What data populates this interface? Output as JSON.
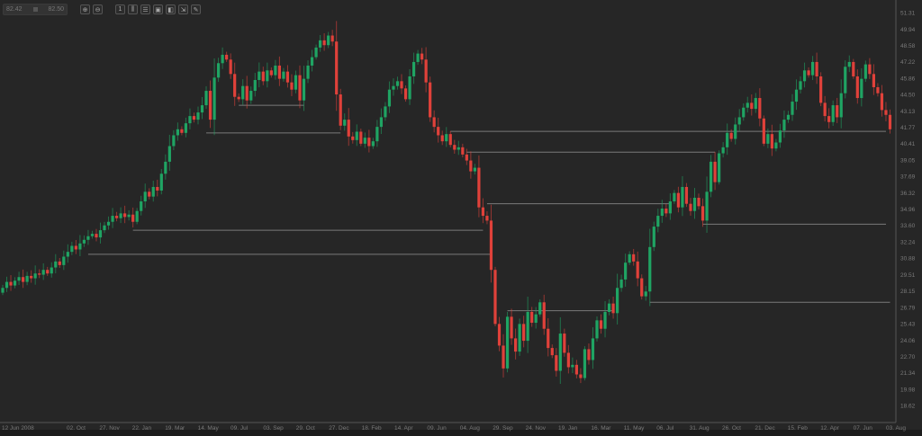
{
  "toolbar": {
    "range_from": "82.42",
    "range_to": "82.50",
    "buttons": [
      {
        "icon": "zoom-in-icon",
        "glyph": "⊕"
      },
      {
        "icon": "zoom-out-icon",
        "glyph": "⊖"
      },
      {
        "icon": "timeframe-icon",
        "glyph": "1"
      },
      {
        "icon": "candle-type-icon",
        "glyph": "⫼"
      },
      {
        "icon": "indicators-icon",
        "glyph": "☰"
      },
      {
        "icon": "fit-screen-icon",
        "glyph": "▣"
      },
      {
        "icon": "layers-icon",
        "glyph": "◧"
      },
      {
        "icon": "export-icon",
        "glyph": "⇲"
      },
      {
        "icon": "draw-icon",
        "glyph": "✎"
      }
    ]
  },
  "colors": {
    "background": "#262626",
    "up": "#1fa463",
    "down": "#e0413a",
    "level_line": "#7a7a7a"
  },
  "chart_data": {
    "type": "candlestick",
    "interval": "weekly",
    "ylim": [
      18.62,
      51.31
    ],
    "y_ticks": [
      "51.31",
      "49.94",
      "48.58",
      "47.22",
      "45.86",
      "44.50",
      "43.13",
      "41.77",
      "40.41",
      "39.05",
      "37.69",
      "36.32",
      "34.96",
      "33.60",
      "32.24",
      "30.88",
      "29.51",
      "28.15",
      "26.79",
      "25.43",
      "24.06",
      "22.70",
      "21.34",
      "19.98",
      "18.62"
    ],
    "x_ticks": [
      "12 Jun 2008",
      "02. Oct",
      "27. Nov",
      "22. Jan",
      "19. Mar",
      "14. May",
      "09. Jul",
      "03. Sep",
      "29. Oct",
      "27. Dec",
      "18. Feb",
      "14. Apr",
      "09. Jun",
      "04. Aug",
      "29. Sep",
      "24. Nov",
      "19. Jan",
      "16. Mar",
      "11. May",
      "06. Jul",
      "31. Aug",
      "26. Oct",
      "21. Dec",
      "15. Feb",
      "12. Apr",
      "07. Jun",
      "03. Aug"
    ],
    "first_open": 28.0,
    "close": [
      28.4,
      28.9,
      28.6,
      29.0,
      29.3,
      28.9,
      29.4,
      29.2,
      29.6,
      29.5,
      29.9,
      29.6,
      30.1,
      30.6,
      30.3,
      31.0,
      31.4,
      31.9,
      31.6,
      32.1,
      32.4,
      32.7,
      32.9,
      32.6,
      33.2,
      33.6,
      33.9,
      34.4,
      34.2,
      34.6,
      34.3,
      34.5,
      33.9,
      34.8,
      35.6,
      36.4,
      36.0,
      36.8,
      36.5,
      37.9,
      38.9,
      40.2,
      41.1,
      41.6,
      41.3,
      42.1,
      42.7,
      42.4,
      43.0,
      43.6,
      44.8,
      42.4,
      45.9,
      47.1,
      47.8,
      47.4,
      46.2,
      44.3,
      44.1,
      45.2,
      44.0,
      44.8,
      45.7,
      46.4,
      45.6,
      46.5,
      46.1,
      46.9,
      45.8,
      46.4,
      45.5,
      44.9,
      46.1,
      44.0,
      45.8,
      46.9,
      47.6,
      48.4,
      49.0,
      48.6,
      49.4,
      48.9,
      44.5,
      41.9,
      42.4,
      41.0,
      40.7,
      41.4,
      40.4,
      40.9,
      40.2,
      40.6,
      41.8,
      42.6,
      43.5,
      44.9,
      45.2,
      45.6,
      45.0,
      44.1,
      46.0,
      47.2,
      47.9,
      47.4,
      45.5,
      42.6,
      41.8,
      41.1,
      40.6,
      41.2,
      40.3,
      39.9,
      40.1,
      39.5,
      39.0,
      38.1,
      38.4,
      35.1,
      34.4,
      34.0,
      29.9,
      25.4,
      23.6,
      21.7,
      26.0,
      24.2,
      23.1,
      25.4,
      24.0,
      26.4,
      25.5,
      26.2,
      27.2,
      25.0,
      23.4,
      22.8,
      21.5,
      24.6,
      23.0,
      21.8,
      22.0,
      21.2,
      20.9,
      23.3,
      22.4,
      24.2,
      25.7,
      25.0,
      26.4,
      27.1,
      26.3,
      28.4,
      29.1,
      30.5,
      31.2,
      30.6,
      29.2,
      27.7,
      28.1,
      31.8,
      33.5,
      34.4,
      35.0,
      34.6,
      35.6,
      36.3,
      35.1,
      36.8,
      35.4,
      34.8,
      35.9,
      35.2,
      34.0,
      36.4,
      38.9,
      37.2,
      39.6,
      40.1,
      41.3,
      40.8,
      42.0,
      42.6,
      43.4,
      43.8,
      43.3,
      44.2,
      42.5,
      40.4,
      41.2,
      40.0,
      40.5,
      41.5,
      42.4,
      42.8,
      43.9,
      44.9,
      45.6,
      46.5,
      46.1,
      47.2,
      46.0,
      43.8,
      42.7,
      42.2,
      43.6,
      42.6,
      44.6,
      46.8,
      47.2,
      46.0,
      44.2,
      45.8,
      47.0,
      46.2,
      45.1,
      44.6,
      43.2,
      42.8,
      41.6
    ],
    "levels": [
      {
        "price": 41.3,
        "from_bar": 50,
        "to_bar": 83
      },
      {
        "price": 43.6,
        "from_bar": 58,
        "to_bar": 74
      },
      {
        "price": 41.43,
        "from_bar": 110,
        "to_bar": 217
      },
      {
        "price": 39.7,
        "from_bar": 114,
        "to_bar": 175
      },
      {
        "price": 35.4,
        "from_bar": 119,
        "to_bar": 164
      },
      {
        "price": 33.2,
        "from_bar": 32,
        "to_bar": 118
      },
      {
        "price": 31.2,
        "from_bar": 21,
        "to_bar": 120
      },
      {
        "price": 33.7,
        "from_bar": 172,
        "to_bar": 217
      },
      {
        "price": 27.2,
        "from_bar": 159,
        "to_bar": 218
      },
      {
        "price": 26.5,
        "from_bar": 124,
        "to_bar": 150
      }
    ]
  }
}
